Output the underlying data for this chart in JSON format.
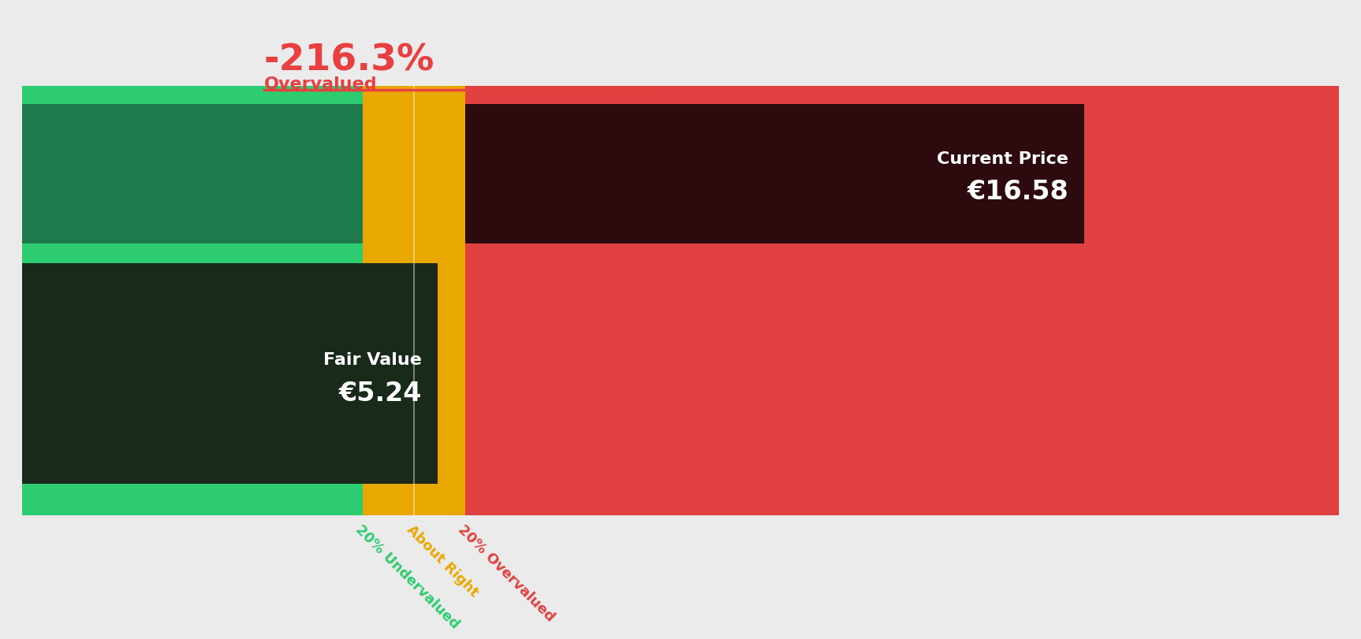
{
  "title_pct": "-216.3%",
  "title_label": "Overvalued",
  "title_color": "#E84040",
  "bg_color": "#EBEBEB",
  "fair_value": "€5.24",
  "current_price": "€16.58",
  "fair_value_label": "Fair Value",
  "current_price_label": "Current Price",
  "segments": {
    "green_light": "#2ECC71",
    "green_dark": "#1E7A4A",
    "yellow": "#E8A800",
    "red_bright": "#E04040",
    "red_dark": "#2D0A0E"
  },
  "label_box_fv": "#1A2A1A",
  "label_box_cp": "#2D0A0E",
  "axis_label_texts": [
    "20% Undervalued",
    "About Right",
    "20% Overvalued"
  ],
  "axis_label_colors": [
    "#2ECC71",
    "#E8A800",
    "#E04040"
  ]
}
